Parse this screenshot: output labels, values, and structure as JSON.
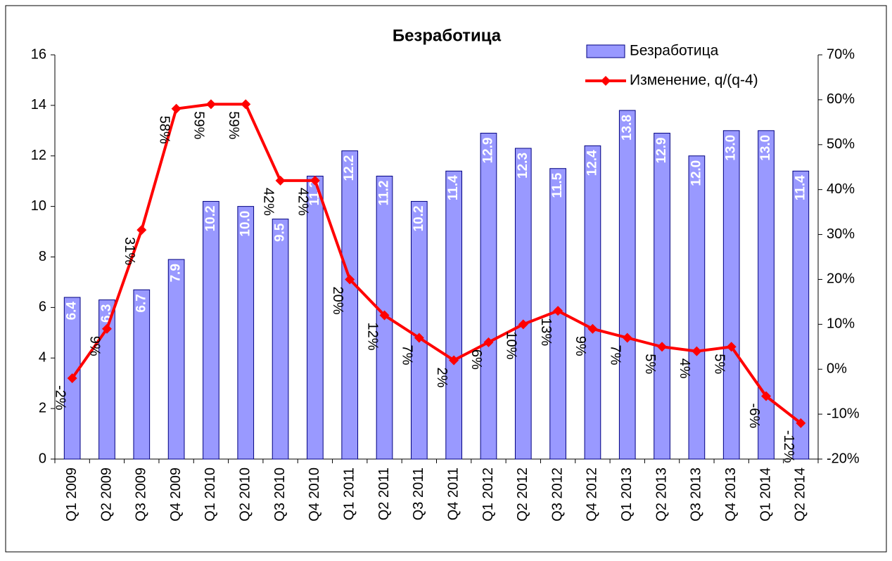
{
  "chart_data": {
    "type": "bar-line",
    "title": "Безработица",
    "categories": [
      "Q1 2009",
      "Q2 2009",
      "Q3 2009",
      "Q4 2009",
      "Q1 2010",
      "Q2 2010",
      "Q3 2010",
      "Q4 2010",
      "Q1 2011",
      "Q2 2011",
      "Q3 2011",
      "Q4 2011",
      "Q1 2012",
      "Q2 2012",
      "Q3 2012",
      "Q4 2012",
      "Q1 2013",
      "Q2 2013",
      "Q3 2013",
      "Q4 2013",
      "Q1 2014",
      "Q2 2014"
    ],
    "series": [
      {
        "name": "Безработица",
        "type": "bar",
        "color": "#9999ff",
        "values": [
          6.4,
          6.3,
          6.7,
          7.9,
          10.2,
          10.0,
          9.5,
          11.2,
          12.2,
          11.2,
          10.2,
          11.4,
          12.9,
          12.3,
          11.5,
          12.4,
          13.8,
          12.9,
          12.0,
          13.0,
          13.0,
          11.4
        ],
        "value_labels": [
          "6.4",
          "6.3",
          "6.7",
          "7.9",
          "10.2",
          "10.0",
          "9.5",
          "11.2",
          "12.2",
          "11.2",
          "10.2",
          "11.4",
          "12.9",
          "12.3",
          "11.5",
          "12.4",
          "13.8",
          "12.9",
          "12.0",
          "13.0",
          "13.0",
          "11.4"
        ]
      },
      {
        "name": "Изменение, q/(q-4)",
        "type": "line",
        "axis": "y2",
        "color": "#ff0000",
        "values": [
          -2,
          9,
          31,
          58,
          59,
          59,
          42,
          42,
          20,
          12,
          7,
          2,
          6,
          10,
          13,
          9,
          7,
          5,
          4,
          5,
          -6,
          -12
        ],
        "value_labels": [
          "-2%",
          "9%",
          "31%",
          "58%",
          "59%",
          "59%",
          "42%",
          "42%",
          "20%",
          "12%",
          "7%",
          "2%",
          "6%",
          "10%",
          "13%",
          "9%",
          "7%",
          "5%",
          "4%",
          "5%",
          "-6%",
          "-12%"
        ]
      }
    ],
    "ylim": [
      0,
      16
    ],
    "yticks": [
      0,
      2,
      4,
      6,
      8,
      10,
      12,
      14,
      16
    ],
    "y2lim": [
      -20,
      70
    ],
    "y2ticks": [
      {
        "value": -20,
        "label": "-20%"
      },
      {
        "value": -10,
        "label": "-10%"
      },
      {
        "value": 0,
        "label": "0%"
      },
      {
        "value": 10,
        "label": "10%"
      },
      {
        "value": 20,
        "label": "20%"
      },
      {
        "value": 30,
        "label": "30%"
      },
      {
        "value": 40,
        "label": "40%"
      },
      {
        "value": 50,
        "label": "50%"
      },
      {
        "value": 60,
        "label": "60%"
      },
      {
        "value": 70,
        "label": "70%"
      }
    ],
    "legend": "top-right"
  }
}
